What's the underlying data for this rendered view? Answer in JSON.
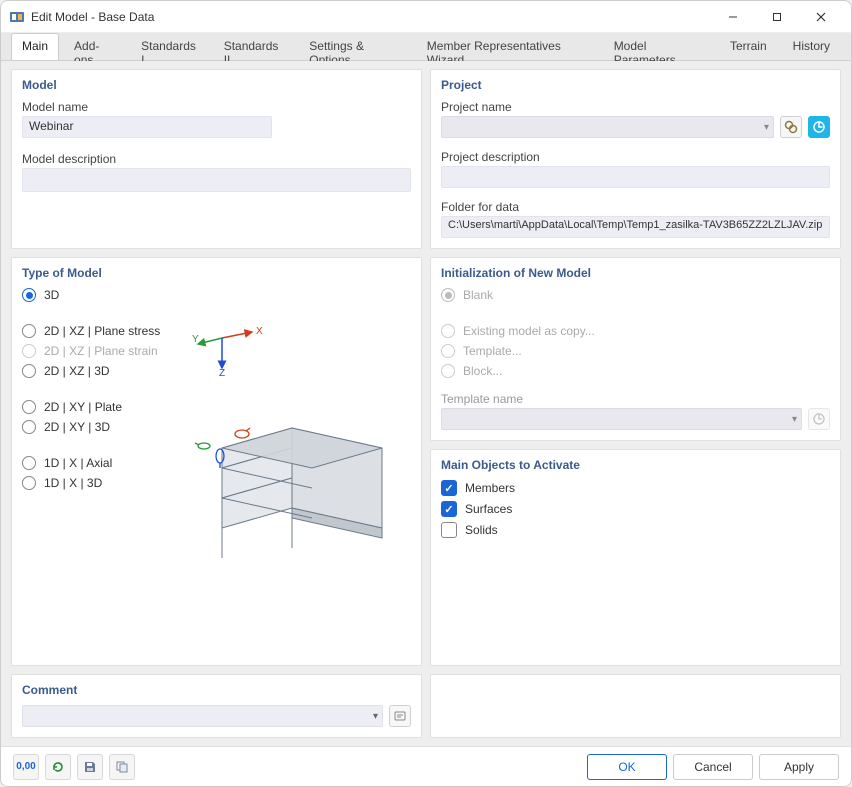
{
  "window": {
    "title": "Edit Model - Base Data"
  },
  "tabs": [
    "Main",
    "Add-ons",
    "Standards I",
    "Standards II",
    "Settings & Options",
    "Member Representatives Wizard",
    "Model Parameters",
    "Terrain",
    "History"
  ],
  "active_tab_index": 0,
  "model_panel": {
    "title": "Model",
    "name_label": "Model name",
    "name_value": "Webinar",
    "desc_label": "Model description",
    "desc_value": ""
  },
  "project_panel": {
    "title": "Project",
    "name_label": "Project name",
    "name_value": "",
    "desc_label": "Project description",
    "desc_value": "",
    "folder_label": "Folder for data",
    "folder_value": "C:\\Users\\marti\\AppData\\Local\\Temp\\Temp1_zasilka-TAV3B65ZZ2LZLJAV.zip"
  },
  "type_panel": {
    "title": "Type of Model",
    "options": [
      {
        "key": "3d",
        "label": "3D",
        "checked": true,
        "disabled": false
      },
      {
        "key": "xz-stress",
        "label": "2D | XZ | Plane stress",
        "checked": false,
        "disabled": false
      },
      {
        "key": "xz-strain",
        "label": "2D | XZ | Plane strain",
        "checked": false,
        "disabled": true
      },
      {
        "key": "xz-3d",
        "label": "2D | XZ | 3D",
        "checked": false,
        "disabled": false
      },
      {
        "key": "xy-plate",
        "label": "2D | XY | Plate",
        "checked": false,
        "disabled": false
      },
      {
        "key": "xy-3d",
        "label": "2D | XY | 3D",
        "checked": false,
        "disabled": false
      },
      {
        "key": "1d-axial",
        "label": "1D | X | Axial",
        "checked": false,
        "disabled": false
      },
      {
        "key": "1d-3d",
        "label": "1D | X | 3D",
        "checked": false,
        "disabled": false
      }
    ],
    "axes": {
      "x_label": "X",
      "y_label": "Y",
      "z_label": "Z"
    }
  },
  "init_panel": {
    "title": "Initialization of New Model",
    "options": [
      {
        "key": "blank",
        "label": "Blank",
        "checked": true
      },
      {
        "key": "copy",
        "label": "Existing model as copy...",
        "checked": false
      },
      {
        "key": "template",
        "label": "Template...",
        "checked": false
      },
      {
        "key": "block",
        "label": "Block...",
        "checked": false
      }
    ],
    "template_label": "Template name",
    "template_value": ""
  },
  "mainobj_panel": {
    "title": "Main Objects to Activate",
    "options": [
      {
        "key": "members",
        "label": "Members",
        "checked": true
      },
      {
        "key": "surfaces",
        "label": "Surfaces",
        "checked": true
      },
      {
        "key": "solids",
        "label": "Solids",
        "checked": false
      }
    ]
  },
  "comment_panel": {
    "title": "Comment",
    "value": ""
  },
  "footer": {
    "ok": "OK",
    "cancel": "Cancel",
    "apply": "Apply",
    "tool_units": "0,00"
  },
  "colors": {
    "accent": "#1a66d6",
    "section_title": "#3b5b8c",
    "panel_bg": "#ffffff",
    "content_bg": "#eeeeee",
    "input_bg": "#edeef5"
  }
}
